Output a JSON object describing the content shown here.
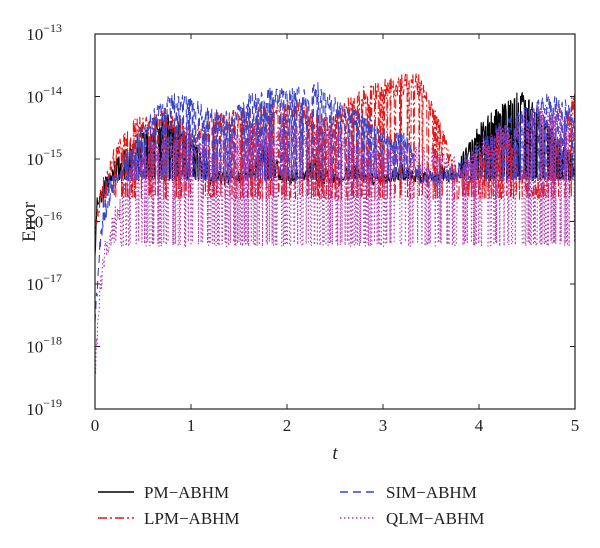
{
  "chart_data": {
    "type": "line",
    "title": "",
    "xlabel": "t",
    "ylabel": "Error",
    "xlim": [
      0,
      5
    ],
    "ylim_exponent": [
      -19,
      -13
    ],
    "yscale": "log",
    "x_ticks": [
      "0",
      "1",
      "2",
      "3",
      "4",
      "5"
    ],
    "y_ticks": [
      {
        "base": "10",
        "exp": "−19",
        "value": -19
      },
      {
        "base": "10",
        "exp": "−18",
        "value": -18
      },
      {
        "base": "10",
        "exp": "−17",
        "value": -17
      },
      {
        "base": "10",
        "exp": "−16",
        "value": -16
      },
      {
        "base": "10",
        "exp": "−15",
        "value": -15
      },
      {
        "base": "10",
        "exp": "−14",
        "value": -14
      },
      {
        "base": "10",
        "exp": "−13",
        "value": -13
      }
    ],
    "grid": false,
    "legend_position": "bottom",
    "series": [
      {
        "name": "PM−ABHM",
        "color": "#000000",
        "dash": "solid",
        "anchors": [
          [
            0.0,
            -16.6
          ],
          [
            0.02,
            -15.7
          ],
          [
            0.05,
            -15.6
          ],
          [
            0.1,
            -15.55
          ],
          [
            0.15,
            -15.4
          ],
          [
            0.2,
            -15.1
          ],
          [
            0.3,
            -14.9
          ],
          [
            0.45,
            -14.75
          ],
          [
            0.6,
            -14.5
          ],
          [
            0.75,
            -14.4
          ],
          [
            0.85,
            -14.5
          ],
          [
            0.95,
            -14.7
          ],
          [
            1.05,
            -14.85
          ],
          [
            1.15,
            -15.0
          ],
          [
            1.2,
            -15.3
          ],
          [
            1.3,
            -15.3
          ],
          [
            1.45,
            -15.3
          ],
          [
            1.55,
            -15.3
          ],
          [
            1.6,
            -15.3
          ],
          [
            1.7,
            -15.0
          ],
          [
            1.8,
            -14.9
          ],
          [
            1.9,
            -15.1
          ],
          [
            2.0,
            -15.3
          ],
          [
            2.1,
            -15.3
          ],
          [
            2.2,
            -15.2
          ],
          [
            2.3,
            -15.0
          ],
          [
            2.35,
            -15.3
          ],
          [
            2.5,
            -15.3
          ],
          [
            2.6,
            -15.3
          ],
          [
            2.7,
            -15.1
          ],
          [
            2.8,
            -15.3
          ],
          [
            2.9,
            -15.3
          ],
          [
            3.0,
            -15.3
          ],
          [
            3.2,
            -15.2
          ],
          [
            3.4,
            -15.3
          ],
          [
            3.5,
            -15.3
          ],
          [
            3.6,
            -15.2
          ],
          [
            3.7,
            -15.3
          ],
          [
            3.8,
            -15.1
          ],
          [
            3.9,
            -14.8
          ],
          [
            4.0,
            -14.55
          ],
          [
            4.1,
            -14.4
          ],
          [
            4.2,
            -14.3
          ],
          [
            4.3,
            -14.15
          ],
          [
            4.4,
            -14.0
          ],
          [
            4.5,
            -14.1
          ],
          [
            4.6,
            -14.3
          ],
          [
            4.7,
            -14.5
          ],
          [
            4.8,
            -14.7
          ],
          [
            4.9,
            -14.9
          ],
          [
            5.0,
            -15.1
          ]
        ],
        "noise_amp": 0.12,
        "floor": -15.35,
        "dip_prob": 0.35
      },
      {
        "name": "LPM−ABHM",
        "color": "#e01818",
        "dash": "9 3 2 3",
        "anchors": [
          [
            0.0,
            -16.2
          ],
          [
            0.05,
            -15.7
          ],
          [
            0.15,
            -15.2
          ],
          [
            0.25,
            -14.75
          ],
          [
            0.4,
            -14.55
          ],
          [
            0.55,
            -14.45
          ],
          [
            0.7,
            -14.35
          ],
          [
            0.85,
            -14.45
          ],
          [
            1.0,
            -14.6
          ],
          [
            1.2,
            -14.45
          ],
          [
            1.4,
            -14.4
          ],
          [
            1.6,
            -14.3
          ],
          [
            1.8,
            -14.25
          ],
          [
            2.0,
            -14.2
          ],
          [
            2.2,
            -14.3
          ],
          [
            2.4,
            -14.5
          ],
          [
            2.6,
            -14.25
          ],
          [
            2.8,
            -14.0
          ],
          [
            3.0,
            -13.9
          ],
          [
            3.2,
            -13.8
          ],
          [
            3.3,
            -13.75
          ],
          [
            3.4,
            -13.85
          ],
          [
            3.5,
            -14.2
          ],
          [
            3.6,
            -14.6
          ],
          [
            3.7,
            -15.0
          ],
          [
            3.8,
            -15.3
          ],
          [
            4.0,
            -15.1
          ],
          [
            4.2,
            -14.6
          ],
          [
            4.3,
            -14.7
          ],
          [
            4.4,
            -15.1
          ],
          [
            4.5,
            -15.4
          ],
          [
            4.6,
            -15.5
          ],
          [
            4.7,
            -15.4
          ],
          [
            4.8,
            -15.0
          ],
          [
            4.9,
            -14.5
          ],
          [
            5.0,
            -14.0
          ]
        ],
        "noise_amp": 0.18,
        "floor": -15.65,
        "dip_prob": 0.3
      },
      {
        "name": "SIM−ABHM",
        "color": "#3a44c8",
        "dash": "8 5",
        "anchors": [
          [
            0.0,
            -17.6
          ],
          [
            0.05,
            -16.4
          ],
          [
            0.1,
            -15.9
          ],
          [
            0.2,
            -15.4
          ],
          [
            0.3,
            -15.1
          ],
          [
            0.4,
            -14.8
          ],
          [
            0.6,
            -14.3
          ],
          [
            0.8,
            -14.1
          ],
          [
            1.0,
            -14.15
          ],
          [
            1.2,
            -14.3
          ],
          [
            1.4,
            -14.4
          ],
          [
            1.6,
            -14.1
          ],
          [
            1.8,
            -14.0
          ],
          [
            2.0,
            -14.0
          ],
          [
            2.2,
            -14.0
          ],
          [
            2.3,
            -13.9
          ],
          [
            2.4,
            -14.0
          ],
          [
            2.6,
            -14.3
          ],
          [
            2.8,
            -14.4
          ],
          [
            3.0,
            -14.6
          ],
          [
            3.1,
            -14.8
          ],
          [
            3.2,
            -14.6
          ],
          [
            3.4,
            -15.3
          ],
          [
            3.6,
            -15.3
          ],
          [
            3.8,
            -15.2
          ],
          [
            4.0,
            -14.8
          ],
          [
            4.2,
            -14.55
          ],
          [
            4.4,
            -14.4
          ],
          [
            4.6,
            -14.2
          ],
          [
            4.7,
            -14.1
          ],
          [
            4.8,
            -14.15
          ],
          [
            4.9,
            -14.2
          ],
          [
            5.0,
            -14.3
          ]
        ],
        "noise_amp": 0.15,
        "floor": -15.35,
        "dip_prob": 0.3
      },
      {
        "name": "QLM−ABHM",
        "color": "#b03cb0",
        "dash": "1.5 2.5",
        "anchors": [
          [
            0.0,
            -18.4
          ],
          [
            0.05,
            -17.2
          ],
          [
            0.1,
            -16.5
          ],
          [
            0.2,
            -16.0
          ],
          [
            0.3,
            -15.6
          ],
          [
            0.4,
            -15.2
          ],
          [
            0.6,
            -14.9
          ],
          [
            0.8,
            -14.8
          ],
          [
            1.0,
            -14.8
          ],
          [
            1.2,
            -14.9
          ],
          [
            1.4,
            -14.75
          ],
          [
            1.6,
            -14.7
          ],
          [
            1.8,
            -14.7
          ],
          [
            2.0,
            -14.6
          ],
          [
            2.2,
            -14.7
          ],
          [
            2.4,
            -14.6
          ],
          [
            2.6,
            -14.7
          ],
          [
            2.8,
            -14.9
          ],
          [
            3.0,
            -15.0
          ],
          [
            3.2,
            -14.9
          ],
          [
            3.4,
            -15.0
          ],
          [
            3.6,
            -15.0
          ],
          [
            3.8,
            -15.2
          ],
          [
            4.0,
            -14.9
          ],
          [
            4.2,
            -14.7
          ],
          [
            4.4,
            -14.5
          ],
          [
            4.6,
            -14.3
          ],
          [
            4.8,
            -14.3
          ],
          [
            4.9,
            -14.4
          ],
          [
            5.0,
            -14.6
          ]
        ],
        "noise_amp": 0.2,
        "floor": -16.4,
        "dip_prob": 0.35
      }
    ]
  }
}
